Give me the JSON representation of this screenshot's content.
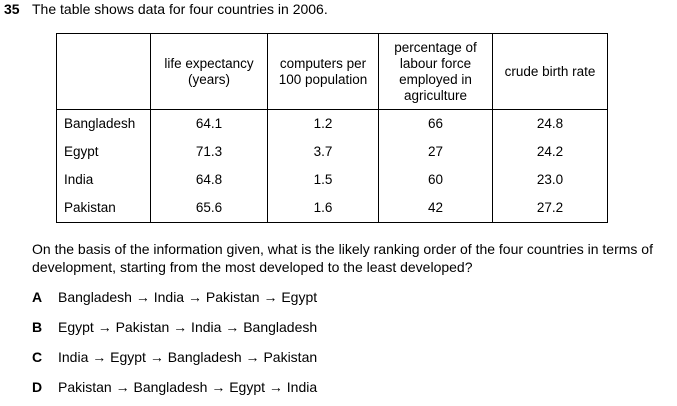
{
  "question": {
    "number": "35",
    "stem": "The table shows data for four countries in 2006.",
    "prompt": "On the basis of the information given, what is the likely ranking order of the four countries in terms of development, starting from the most developed to the least developed?"
  },
  "table": {
    "headers": [
      "",
      "life expectancy (years)",
      "computers per 100 population",
      "percentage of labour force employed in agriculture",
      "crude birth rate"
    ],
    "rows": [
      {
        "country": "Bangladesh",
        "values": [
          "64.1",
          "1.2",
          "66",
          "24.8"
        ]
      },
      {
        "country": "Egypt",
        "values": [
          "71.3",
          "3.7",
          "27",
          "24.2"
        ]
      },
      {
        "country": "India",
        "values": [
          "64.8",
          "1.5",
          "60",
          "23.0"
        ]
      },
      {
        "country": "Pakistan",
        "values": [
          "65.6",
          "1.6",
          "42",
          "27.2"
        ]
      }
    ]
  },
  "options": [
    {
      "letter": "A",
      "text": "Bangladesh → India → Pakistan → Egypt"
    },
    {
      "letter": "B",
      "text": "Egypt → Pakistan → India → Bangladesh"
    },
    {
      "letter": "C",
      "text": "India → Egypt → Bangladesh → Pakistan"
    },
    {
      "letter": "D",
      "text": "Pakistan → Bangladesh → Egypt → India"
    }
  ]
}
